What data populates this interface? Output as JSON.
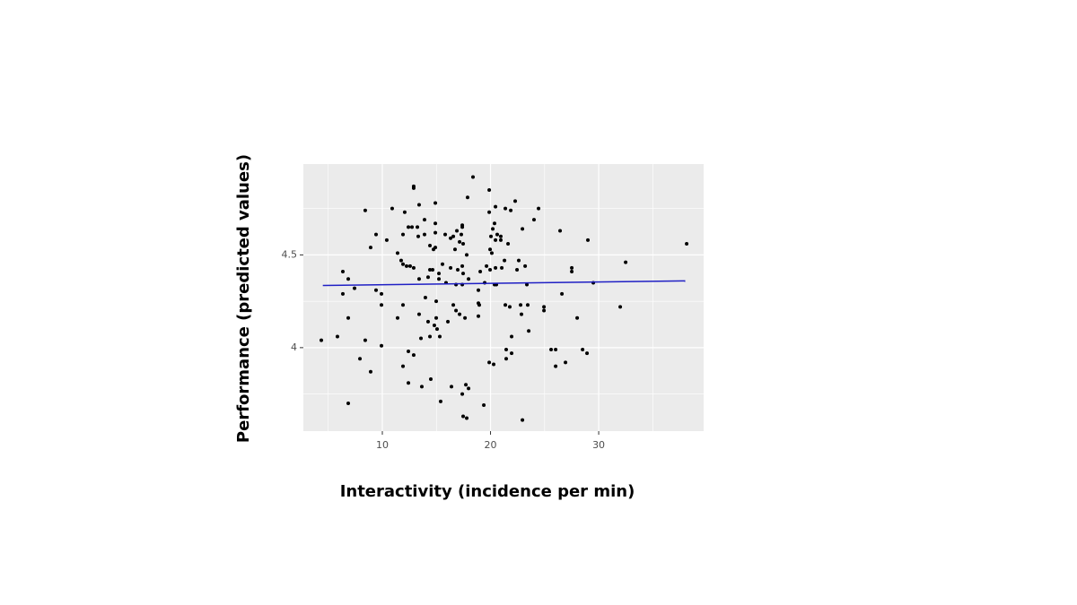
{
  "chart_data": {
    "type": "scatter",
    "xlabel": "Interactivity (incidence per min)",
    "ylabel": "Performance (predicted values)",
    "xlim": [
      2.7,
      39.7
    ],
    "ylim": [
      3.55,
      4.99
    ],
    "xticks": [
      10,
      20,
      30
    ],
    "yticks": [
      4,
      4.5
    ],
    "xminor": [
      5,
      15,
      25,
      35
    ],
    "yminor": [
      3.75,
      4.25,
      4.75
    ],
    "grid": true,
    "color": "#000000",
    "trend": {
      "x": [
        4.5,
        38
      ],
      "y": [
        4.335,
        4.36
      ],
      "color": "#1f1fc4"
    },
    "x": [
      4.36,
      5.85,
      6.35,
      6.35,
      6.85,
      6.85,
      6.85,
      7.43,
      7.93,
      8.42,
      8.42,
      8.92,
      8.92,
      9.42,
      9.42,
      9.92,
      9.92,
      9.92,
      10.41,
      10.91,
      11.41,
      11.41,
      11.74,
      11.91,
      11.91,
      11.91,
      11.91,
      12.07,
      12.24,
      12.41,
      12.41,
      12.41,
      12.57,
      12.74,
      12.9,
      12.9,
      12.9,
      12.9,
      13.24,
      13.32,
      13.4,
      13.4,
      13.4,
      13.57,
      13.65,
      13.9,
      13.9,
      13.98,
      14.23,
      14.23,
      14.4,
      14.4,
      14.4,
      14.48,
      14.65,
      14.73,
      14.81,
      14.9,
      14.9,
      14.9,
      14.9,
      14.98,
      14.98,
      15.06,
      15.23,
      15.23,
      15.31,
      15.39,
      15.56,
      15.81,
      15.89,
      16.06,
      16.31,
      16.31,
      16.39,
      16.56,
      16.56,
      16.72,
      16.81,
      16.81,
      16.89,
      16.97,
      17.14,
      17.14,
      17.3,
      17.39,
      17.39,
      17.39,
      17.39,
      17.39,
      17.47,
      17.47,
      17.64,
      17.47,
      17.72,
      17.8,
      17.8,
      17.88,
      17.97,
      17.97,
      18.38,
      18.88,
      18.88,
      18.88,
      18.96,
      19.05,
      19.38,
      19.46,
      19.63,
      19.88,
      19.88,
      19.88,
      19.96,
      19.96,
      20.04,
      20.12,
      20.21,
      20.29,
      20.37,
      20.37,
      20.46,
      20.46,
      20.46,
      20.54,
      20.62,
      20.95,
      20.95,
      21.04,
      21.29,
      21.37,
      21.37,
      21.45,
      21.45,
      21.62,
      21.78,
      21.87,
      21.95,
      21.95,
      22.28,
      22.45,
      22.61,
      22.78,
      22.86,
      22.95,
      22.95,
      23.2,
      23.36,
      23.44,
      23.53,
      24.02,
      24.44,
      24.94,
      24.94,
      25.6,
      26.02,
      26.02,
      26.43,
      26.6,
      26.93,
      27.51,
      27.51,
      28.01,
      28.51,
      28.92,
      29.0,
      29.5,
      31.99,
      32.49,
      38.13
    ],
    "values": [
      4.04,
      4.06,
      4.41,
      4.29,
      4.37,
      4.16,
      3.7,
      4.32,
      3.94,
      4.04,
      4.74,
      4.54,
      3.87,
      4.61,
      4.31,
      4.23,
      4.01,
      4.29,
      4.58,
      4.75,
      4.16,
      4.51,
      4.47,
      4.61,
      4.45,
      4.23,
      3.9,
      4.73,
      4.44,
      4.65,
      3.98,
      3.81,
      4.44,
      4.65,
      4.87,
      4.86,
      4.43,
      3.96,
      4.65,
      4.6,
      4.77,
      4.37,
      4.18,
      4.05,
      3.79,
      4.69,
      4.61,
      4.27,
      4.38,
      4.14,
      4.42,
      4.55,
      4.06,
      3.83,
      4.42,
      4.53,
      4.12,
      4.78,
      4.67,
      4.62,
      4.54,
      4.25,
      4.16,
      4.1,
      4.4,
      4.37,
      4.06,
      3.71,
      4.45,
      4.61,
      4.35,
      4.14,
      4.59,
      4.43,
      3.79,
      4.23,
      4.6,
      4.53,
      4.34,
      4.2,
      4.63,
      4.42,
      4.57,
      4.18,
      4.61,
      4.65,
      4.66,
      4.44,
      4.34,
      3.75,
      4.56,
      4.4,
      4.16,
      3.63,
      3.8,
      3.62,
      4.5,
      4.81,
      4.37,
      3.78,
      4.92,
      4.31,
      4.24,
      4.17,
      4.23,
      4.41,
      3.69,
      4.35,
      4.44,
      4.85,
      4.73,
      3.92,
      4.53,
      4.42,
      4.6,
      4.51,
      4.64,
      3.91,
      4.67,
      4.34,
      4.76,
      4.58,
      4.43,
      4.34,
      4.61,
      4.6,
      4.58,
      4.43,
      4.47,
      4.75,
      4.23,
      3.94,
      3.99,
      4.56,
      4.22,
      4.74,
      3.97,
      4.06,
      4.79,
      4.42,
      4.47,
      4.23,
      4.18,
      3.61,
      4.64,
      4.44,
      4.34,
      4.23,
      4.09,
      4.69,
      4.75,
      4.22,
      4.2,
      3.99,
      3.99,
      3.9,
      4.63,
      4.29,
      3.92,
      4.43,
      4.41,
      4.16,
      3.99,
      3.97,
      4.58,
      4.35,
      4.22,
      4.46,
      4.56
    ]
  }
}
